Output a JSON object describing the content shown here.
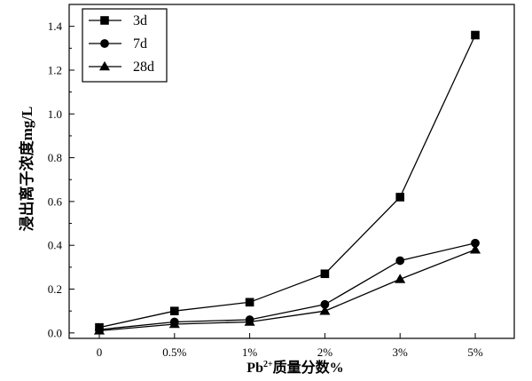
{
  "chart_data": {
    "type": "line",
    "categories": [
      "0",
      "0.5%",
      "1%",
      "2%",
      "3%",
      "5%"
    ],
    "series": [
      {
        "name": "3d",
        "marker": "square",
        "color": "#000000",
        "values": [
          0.025,
          0.1,
          0.14,
          0.27,
          0.62,
          1.36
        ]
      },
      {
        "name": "7d",
        "marker": "circle",
        "color": "#000000",
        "values": [
          0.015,
          0.05,
          0.06,
          0.13,
          0.33,
          0.41
        ]
      },
      {
        "name": "28d",
        "marker": "triangle",
        "color": "#000000",
        "values": [
          0.01,
          0.04,
          0.05,
          0.1,
          0.245,
          0.38
        ]
      }
    ],
    "xlabel": {
      "base": "Pb",
      "sup": "2+",
      "rest": "质量分数%"
    },
    "ylabel": "浸出离子浓度mg/L",
    "yticks": {
      "values": [
        0,
        0.2,
        0.4,
        0.6,
        0.8,
        1.0,
        1.2,
        1.4
      ],
      "labels": [
        "0.0",
        "0.2",
        "0.4",
        "0.6",
        "0.8",
        "1.0",
        "1.2",
        "1.4"
      ]
    },
    "ylim": [
      -0.025,
      1.5
    ],
    "grid": false,
    "legend": "top-left"
  }
}
